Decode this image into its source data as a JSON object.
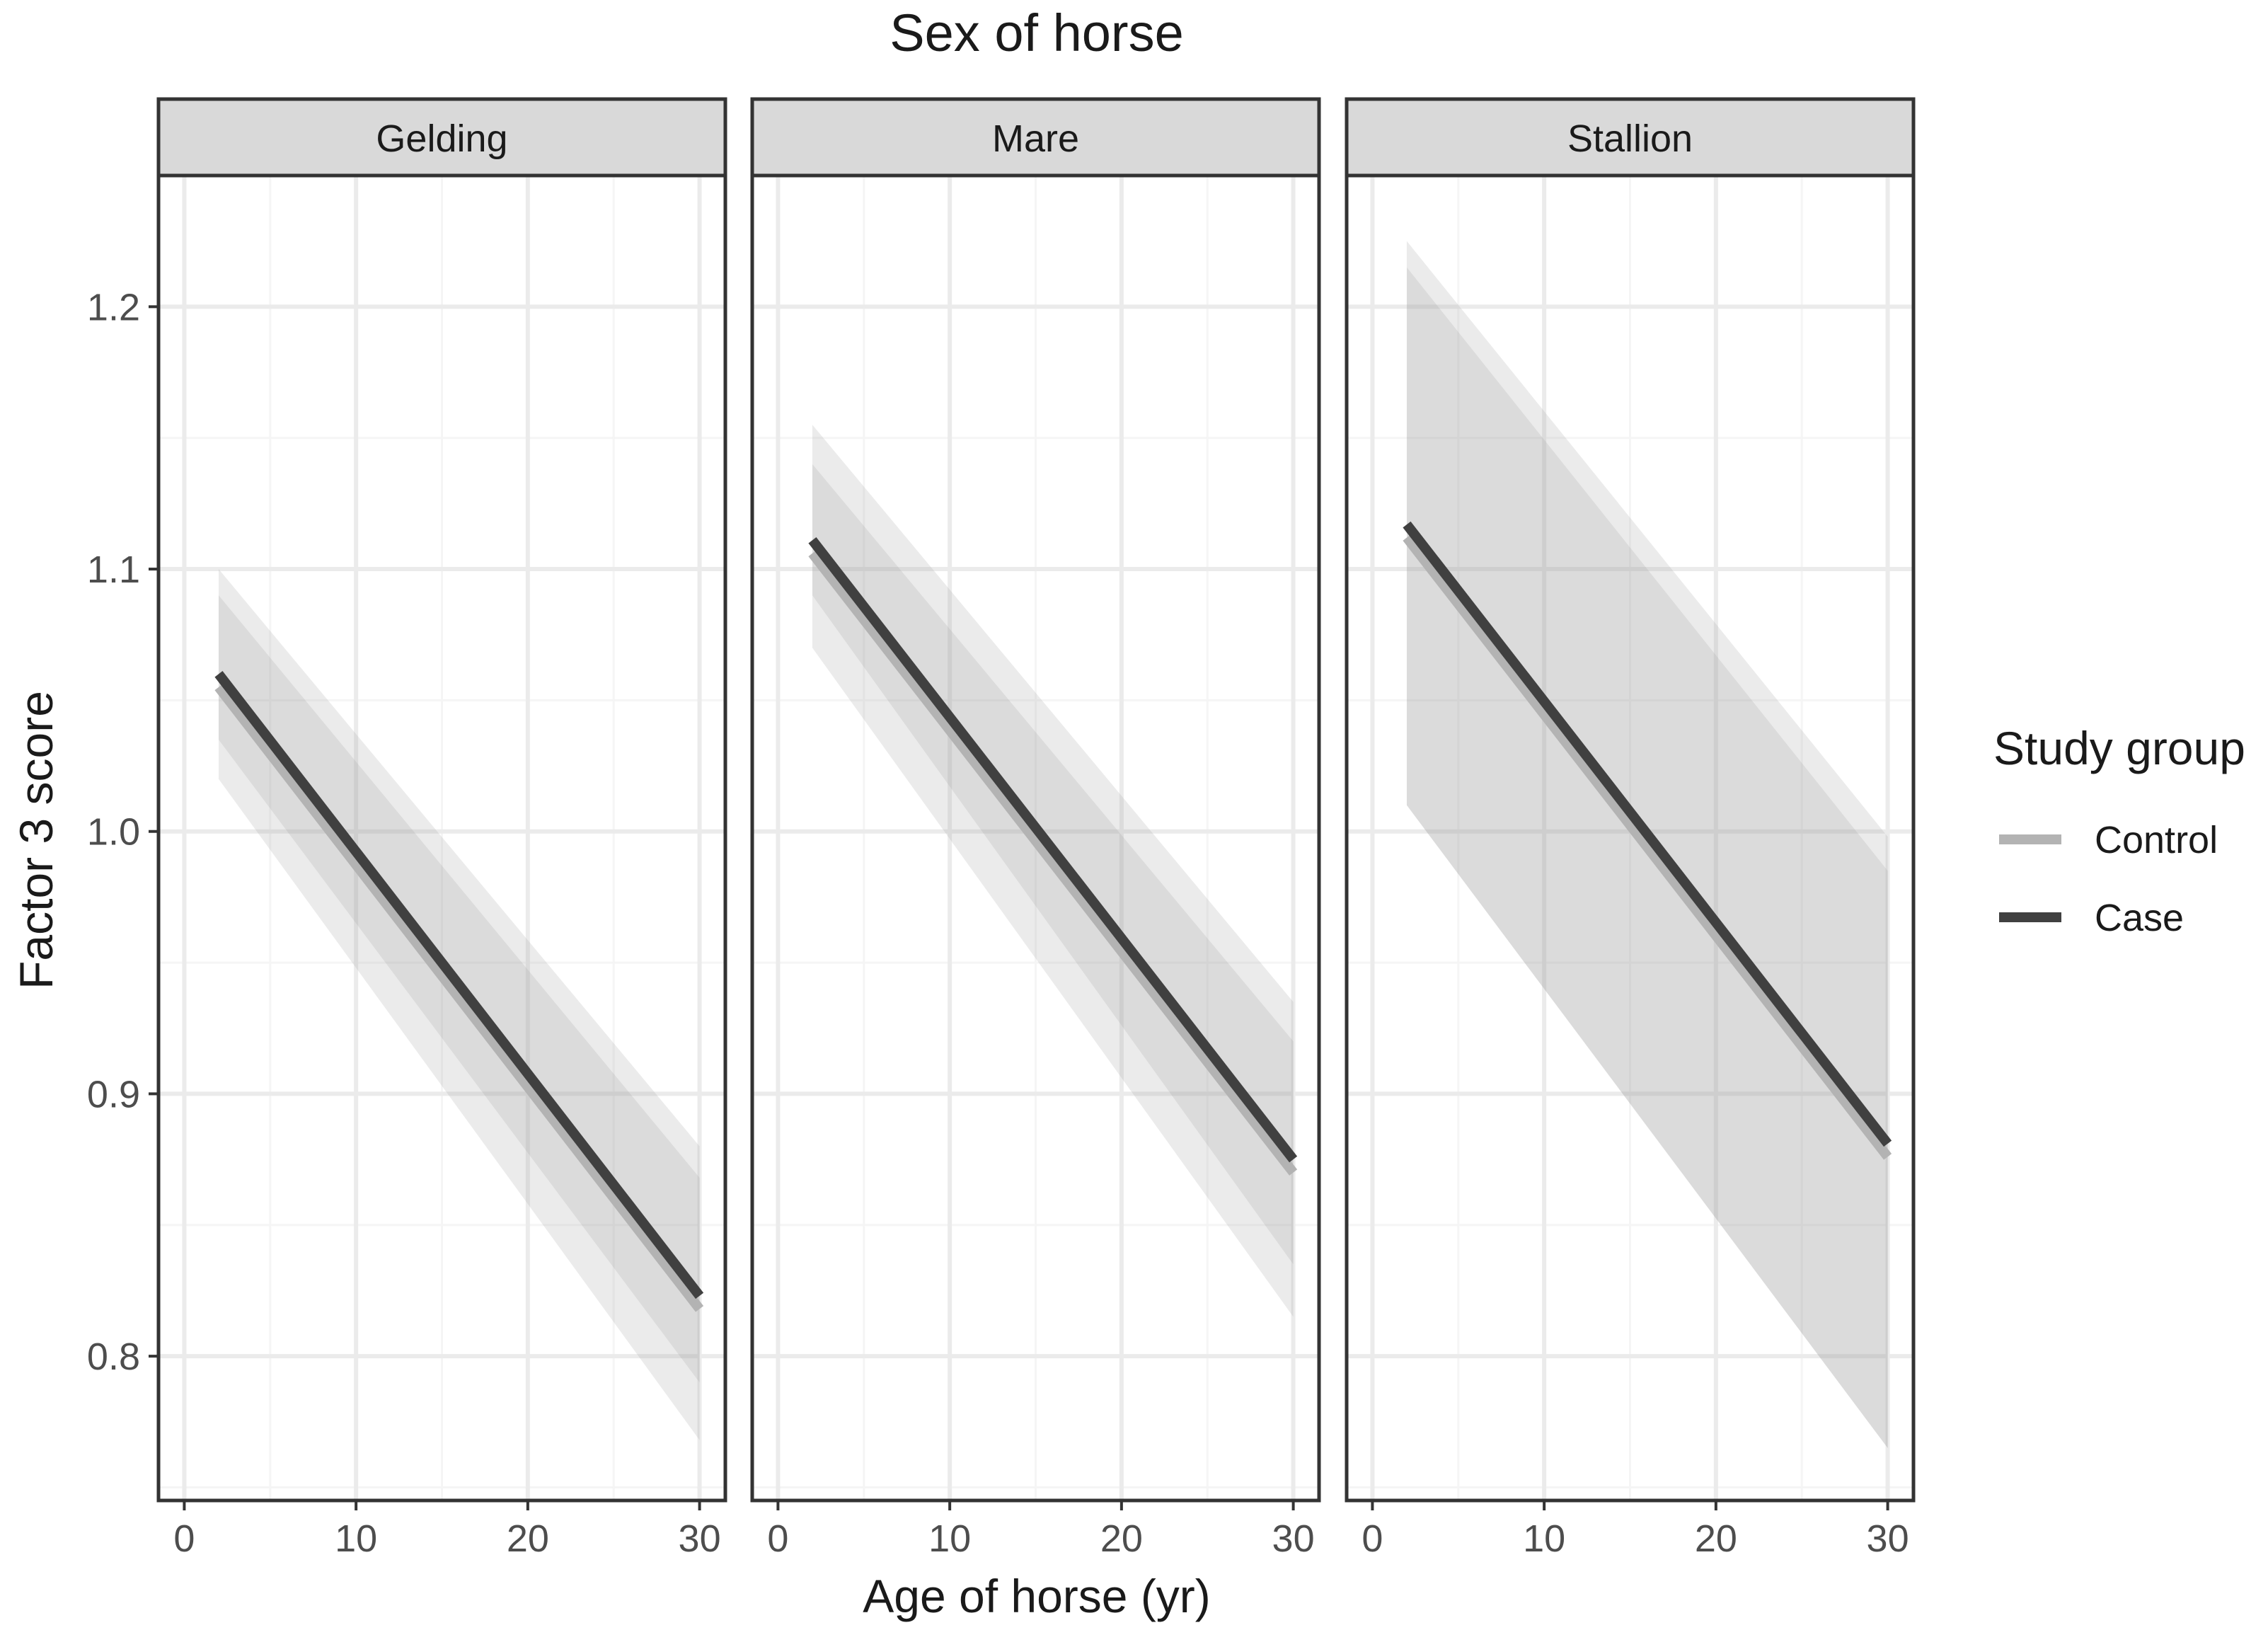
{
  "chart_data": {
    "type": "line",
    "title": "Sex of horse",
    "xlabel": "Age of horse (yr)",
    "ylabel": "Factor 3 score",
    "xlim": [
      -1.5,
      31.5
    ],
    "ylim": [
      0.745,
      1.25
    ],
    "x_ticks": [
      0,
      10,
      20,
      30
    ],
    "y_ticks": [
      0.8,
      0.9,
      1.0,
      1.1,
      1.2
    ],
    "y_tick_labels": [
      "0.8",
      "0.9",
      "1.0",
      "1.1",
      "1.2"
    ],
    "grid": true,
    "legend": {
      "title": "Study group",
      "position": "right",
      "entries": [
        {
          "label": "Control",
          "color": "#b3b3b3"
        },
        {
          "label": "Case",
          "color": "#404040"
        }
      ]
    },
    "panels": [
      {
        "label": "Gelding",
        "series": [
          {
            "name": "Control",
            "x": [
              2,
              30
            ],
            "y": [
              1.055,
              0.818
            ],
            "ci_low": [
              1.02,
              0.768
            ],
            "ci_high": [
              1.09,
              0.868
            ]
          },
          {
            "name": "Case",
            "x": [
              2,
              30
            ],
            "y": [
              1.06,
              0.823
            ],
            "ci_low": [
              1.035,
              0.79
            ],
            "ci_high": [
              1.1,
              0.88
            ]
          }
        ]
      },
      {
        "label": "Mare",
        "series": [
          {
            "name": "Control",
            "x": [
              2,
              30
            ],
            "y": [
              1.106,
              0.87
            ],
            "ci_low": [
              1.07,
              0.815
            ],
            "ci_high": [
              1.14,
              0.92
            ]
          },
          {
            "name": "Case",
            "x": [
              2,
              30
            ],
            "y": [
              1.111,
              0.875
            ],
            "ci_low": [
              1.09,
              0.835
            ],
            "ci_high": [
              1.155,
              0.935
            ]
          }
        ]
      },
      {
        "label": "Stallion",
        "series": [
          {
            "name": "Control",
            "x": [
              2,
              30
            ],
            "y": [
              1.112,
              0.876
            ],
            "ci_low": [
              1.01,
              0.765
            ],
            "ci_high": [
              1.215,
              0.985
            ]
          },
          {
            "name": "Case",
            "x": [
              2,
              30
            ],
            "y": [
              1.117,
              0.881
            ],
            "ci_low": [
              1.01,
              0.765
            ],
            "ci_high": [
              1.225,
              0.998
            ]
          }
        ]
      }
    ],
    "colors": {
      "panel_border": "#333333",
      "strip_fill": "#d9d9d9",
      "grid_major": "#ebebeb",
      "grid_minor": "#f5f5f5",
      "ribbon": "#999999"
    }
  }
}
